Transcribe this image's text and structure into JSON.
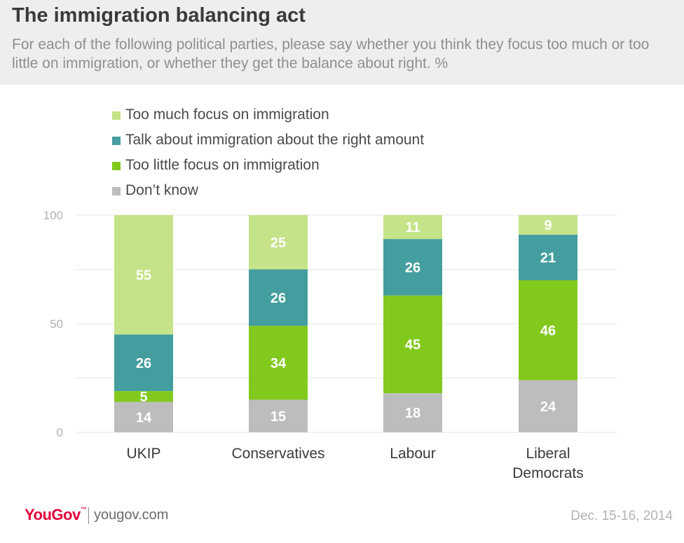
{
  "header": {
    "title": "The immigration balancing act",
    "subtitle": "For each of the following political parties, please say whether you think they focus too much or too little on immigration, or whether they get the balance about right. %"
  },
  "footer": {
    "brand": "YouGov",
    "url": "yougov.com",
    "date": "Dec. 15-16, 2014"
  },
  "chart_data": {
    "type": "bar",
    "stacked": true,
    "title": "The immigration balancing act",
    "categories": [
      [
        "UKIP"
      ],
      [
        "Conservatives"
      ],
      [
        "Labour"
      ],
      [
        "Liberal",
        "Democrats"
      ]
    ],
    "ylim": [
      0,
      100
    ],
    "yticks": [
      0,
      50,
      100
    ],
    "grid": true,
    "legend_position": "top-left",
    "series": [
      {
        "name": "Don't know",
        "color": "#bdbdbd",
        "values": [
          14,
          15,
          18,
          24
        ]
      },
      {
        "name": "Too little focus on immigration",
        "color": "#82c91e",
        "values": [
          5,
          34,
          45,
          46
        ]
      },
      {
        "name": "Talk about immigration about the right amount",
        "color": "#449e9f",
        "values": [
          26,
          26,
          26,
          21
        ]
      },
      {
        "name": "Too much focus on immigration",
        "color": "#c5e388",
        "values": [
          55,
          25,
          11,
          9
        ]
      }
    ],
    "legend": [
      {
        "name": "Too much focus on immigration",
        "color": "#c5e388"
      },
      {
        "name": "Talk about immigration about the right amount",
        "color": "#449e9f"
      },
      {
        "name": "Too little focus on immigration",
        "color": "#82c91e"
      },
      {
        "name": "Don’t know",
        "color": "#bdbdbd"
      }
    ]
  }
}
